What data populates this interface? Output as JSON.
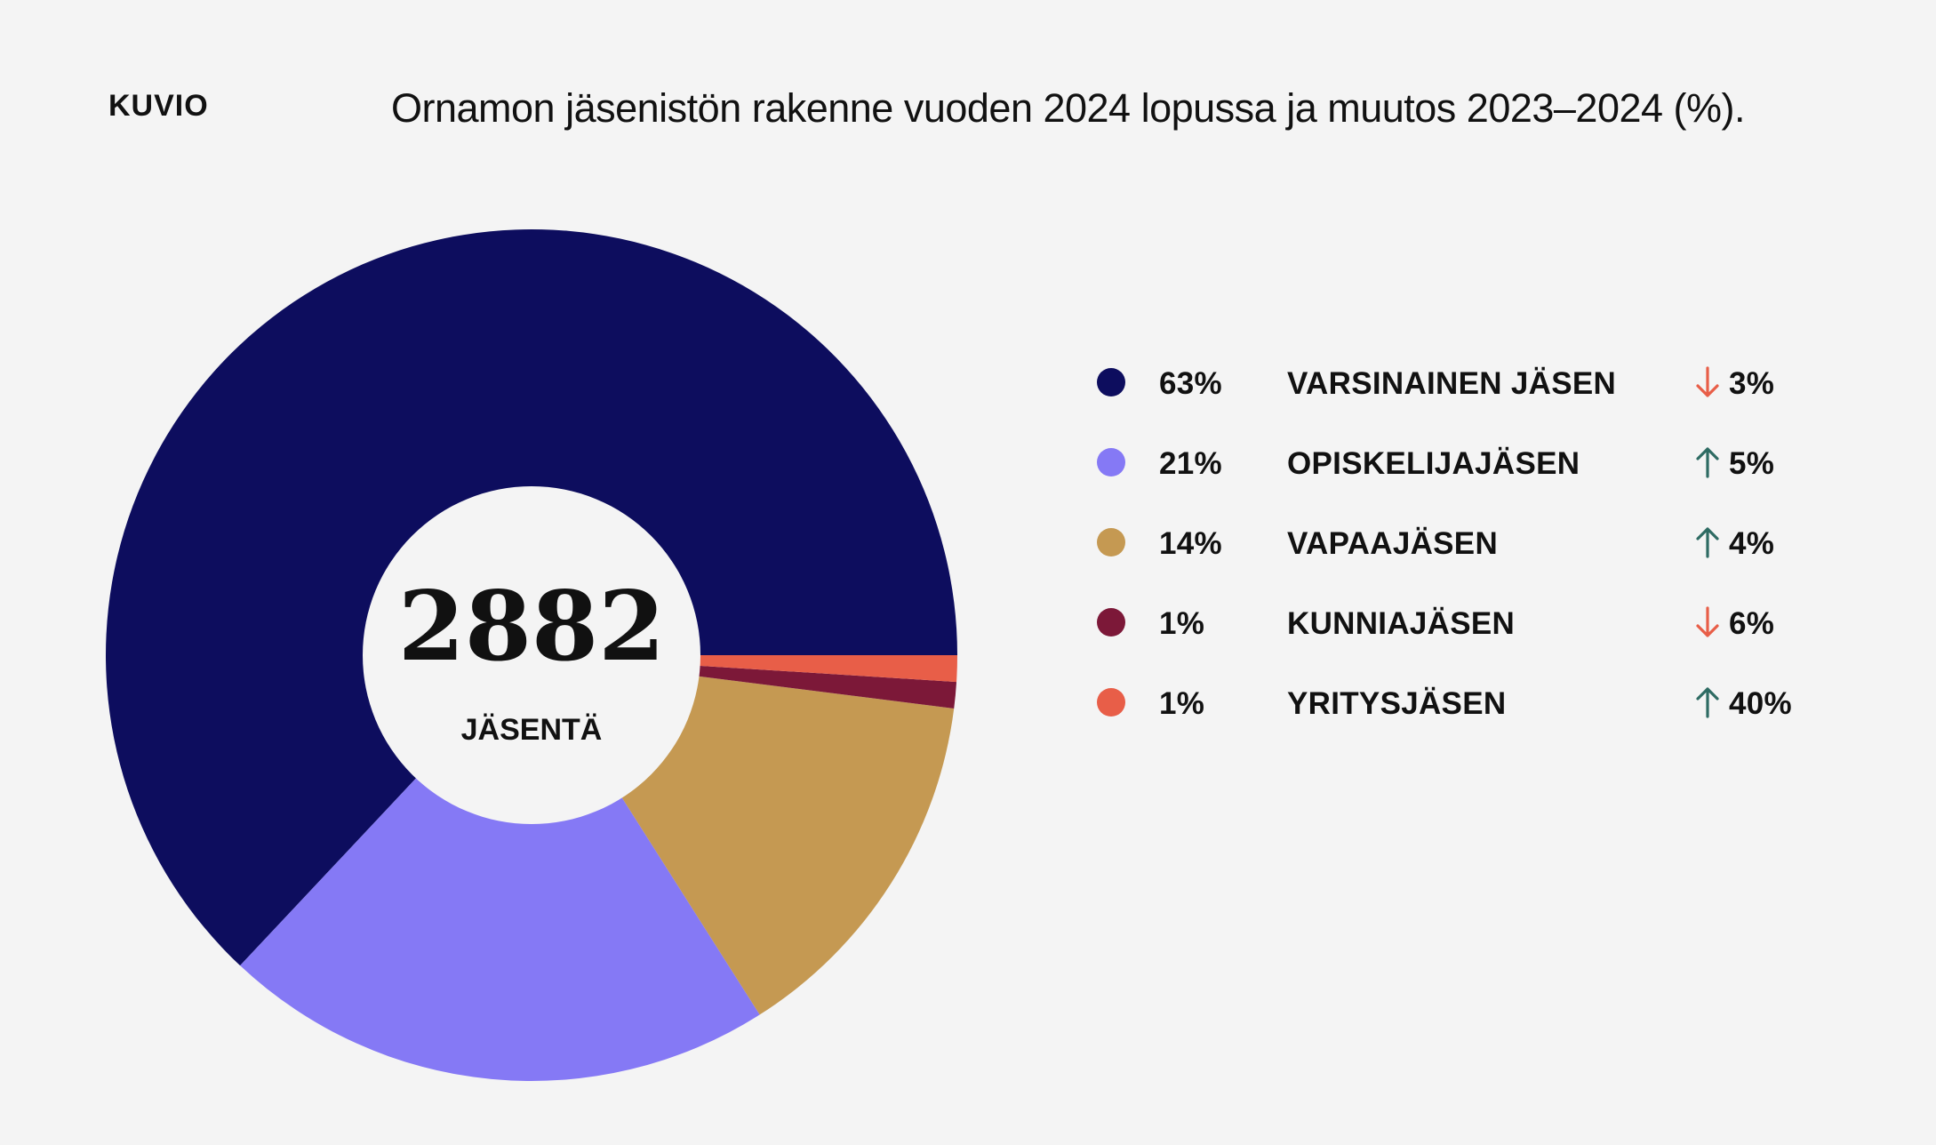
{
  "header": {
    "kicker": "KUVIO",
    "title": "Ornamon jäsenistön rakenne vuoden 2024 lopussa ja muutos 2023–2024 (%)."
  },
  "center": {
    "total": "2882",
    "label": "JÄSENTÄ"
  },
  "chart_data": {
    "type": "pie",
    "title": "Ornamon jäsenistön rakenne vuoden 2024 lopussa ja muutos 2023–2024 (%).",
    "total": 2882,
    "categories": [
      "VARSINAINEN JÄSEN",
      "OPISKELIJAJÄSEN",
      "VAPAAJÄSEN",
      "KUNNIAJÄSEN",
      "YRITYSJÄSEN"
    ],
    "values": [
      63,
      21,
      14,
      1,
      1
    ],
    "value_labels": [
      "63%",
      "21%",
      "14%",
      "1%",
      "1%"
    ],
    "changes": [
      {
        "direction": "down",
        "label": "3%",
        "value": -3
      },
      {
        "direction": "up",
        "label": "5%",
        "value": 5
      },
      {
        "direction": "up",
        "label": "4%",
        "value": 4
      },
      {
        "direction": "down",
        "label": "6%",
        "value": -6
      },
      {
        "direction": "up",
        "label": "40%",
        "value": 40
      }
    ],
    "colors": [
      "#0d0d5e",
      "#8579f5",
      "#c59952",
      "#7c1838",
      "#e85e48"
    ],
    "donut": true,
    "legend_position": "right"
  },
  "arrow_colors": {
    "up": "#2e6b63",
    "down": "#e85e48"
  }
}
